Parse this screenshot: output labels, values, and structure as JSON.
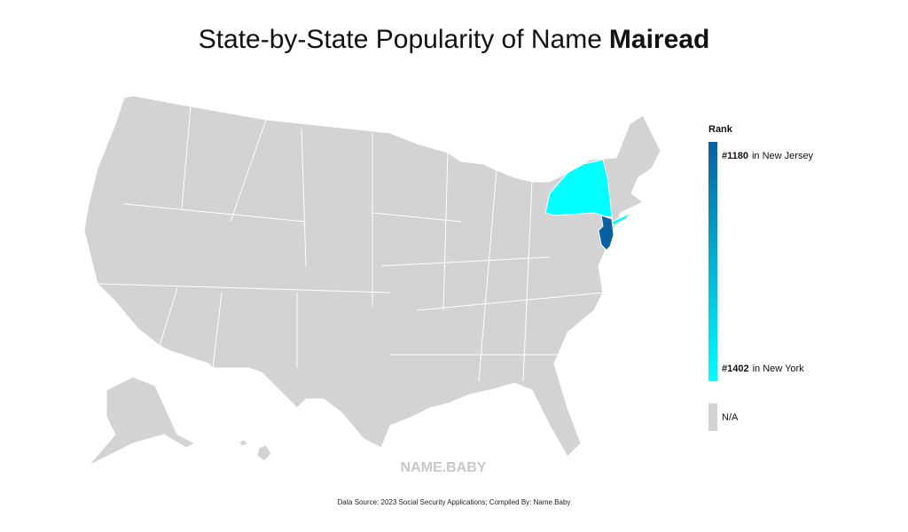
{
  "title": {
    "text": "State-by-State Popularity of Name",
    "name": "Mairead"
  },
  "legend": {
    "title": "Rank",
    "entries": [
      {
        "rank": 1180,
        "rank_label": "#1180",
        "state": "in New Jersey",
        "color": "#0a5fa0"
      },
      {
        "rank": 1402,
        "rank_label": "#1402",
        "state": "in New York",
        "color": "#00ffff"
      }
    ],
    "na_label": "N/A",
    "na_color": "#d3d3d3"
  },
  "watermark": "NAME.BABY",
  "source": "Data Source: 2023 Social Security Applications; Compiled By: Name.Baby"
}
